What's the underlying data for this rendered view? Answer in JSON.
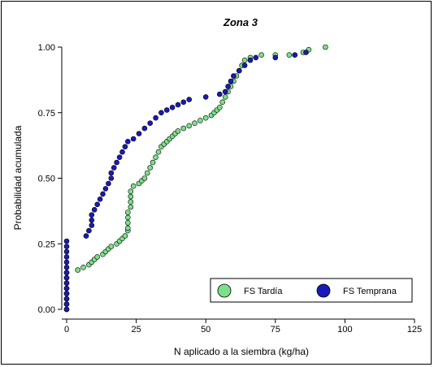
{
  "chart_data": {
    "type": "scatter",
    "title": "Zona 3",
    "xlabel": "N aplicado a la siembra (kg/ha)",
    "ylabel": "Probabilidad acumulada",
    "xlim": [
      0,
      125
    ],
    "ylim": [
      0,
      1
    ],
    "xticks": [
      "0",
      "25",
      "50",
      "75",
      "100",
      "125"
    ],
    "yticks": [
      "0.00",
      "0.25",
      "0.50",
      "0.75",
      "1.00"
    ],
    "legend_position": "bottom-right",
    "grid": false,
    "series": [
      {
        "name": "FS Tardía",
        "color": "#7ce08a",
        "points": [
          [
            0,
            0.0
          ],
          [
            0,
            0.02
          ],
          [
            0,
            0.04
          ],
          [
            0,
            0.06
          ],
          [
            0,
            0.08
          ],
          [
            0,
            0.1
          ],
          [
            0,
            0.12
          ],
          [
            0,
            0.14
          ],
          [
            4,
            0.15
          ],
          [
            6,
            0.16
          ],
          [
            8,
            0.17
          ],
          [
            9,
            0.18
          ],
          [
            10,
            0.19
          ],
          [
            11,
            0.2
          ],
          [
            13,
            0.21
          ],
          [
            14,
            0.22
          ],
          [
            15,
            0.23
          ],
          [
            16,
            0.24
          ],
          [
            18,
            0.25
          ],
          [
            19,
            0.26
          ],
          [
            20,
            0.27
          ],
          [
            21,
            0.28
          ],
          [
            22,
            0.3
          ],
          [
            22,
            0.31
          ],
          [
            22,
            0.33
          ],
          [
            22,
            0.35
          ],
          [
            22,
            0.37
          ],
          [
            23,
            0.39
          ],
          [
            23,
            0.41
          ],
          [
            23,
            0.43
          ],
          [
            23,
            0.45
          ],
          [
            24,
            0.47
          ],
          [
            26,
            0.48
          ],
          [
            27,
            0.49
          ],
          [
            28,
            0.5
          ],
          [
            29,
            0.52
          ],
          [
            30,
            0.54
          ],
          [
            31,
            0.56
          ],
          [
            32,
            0.58
          ],
          [
            33,
            0.6
          ],
          [
            34,
            0.62
          ],
          [
            35,
            0.63
          ],
          [
            36,
            0.64
          ],
          [
            37,
            0.65
          ],
          [
            38,
            0.66
          ],
          [
            39,
            0.67
          ],
          [
            40,
            0.68
          ],
          [
            42,
            0.69
          ],
          [
            44,
            0.7
          ],
          [
            46,
            0.71
          ],
          [
            48,
            0.72
          ],
          [
            50,
            0.73
          ],
          [
            52,
            0.74
          ],
          [
            53,
            0.75
          ],
          [
            54,
            0.76
          ],
          [
            55,
            0.77
          ],
          [
            56,
            0.79
          ],
          [
            57,
            0.81
          ],
          [
            58,
            0.83
          ],
          [
            59,
            0.85
          ],
          [
            60,
            0.87
          ],
          [
            61,
            0.89
          ],
          [
            62,
            0.91
          ],
          [
            63,
            0.93
          ],
          [
            64,
            0.95
          ],
          [
            66,
            0.96
          ],
          [
            70,
            0.97
          ],
          [
            75,
            0.97
          ],
          [
            80,
            0.97
          ],
          [
            85,
            0.98
          ],
          [
            87,
            0.99
          ],
          [
            93,
            1.0
          ]
        ]
      },
      {
        "name": "FS Temprana",
        "color": "#1a1ab8",
        "points": [
          [
            0,
            0.0
          ],
          [
            0,
            0.02
          ],
          [
            0,
            0.04
          ],
          [
            0,
            0.06
          ],
          [
            0,
            0.08
          ],
          [
            0,
            0.1
          ],
          [
            0,
            0.12
          ],
          [
            0,
            0.14
          ],
          [
            0,
            0.16
          ],
          [
            0,
            0.18
          ],
          [
            0,
            0.2
          ],
          [
            0,
            0.22
          ],
          [
            0,
            0.24
          ],
          [
            0,
            0.26
          ],
          [
            7,
            0.28
          ],
          [
            8,
            0.3
          ],
          [
            9,
            0.32
          ],
          [
            9,
            0.34
          ],
          [
            9,
            0.36
          ],
          [
            10,
            0.38
          ],
          [
            11,
            0.4
          ],
          [
            12,
            0.42
          ],
          [
            13,
            0.44
          ],
          [
            14,
            0.46
          ],
          [
            15,
            0.48
          ],
          [
            16,
            0.5
          ],
          [
            16,
            0.52
          ],
          [
            17,
            0.54
          ],
          [
            18,
            0.56
          ],
          [
            19,
            0.58
          ],
          [
            20,
            0.6
          ],
          [
            21,
            0.62
          ],
          [
            22,
            0.64
          ],
          [
            24,
            0.65
          ],
          [
            26,
            0.67
          ],
          [
            28,
            0.69
          ],
          [
            30,
            0.71
          ],
          [
            32,
            0.73
          ],
          [
            34,
            0.75
          ],
          [
            36,
            0.76
          ],
          [
            38,
            0.77
          ],
          [
            40,
            0.78
          ],
          [
            42,
            0.79
          ],
          [
            44,
            0.8
          ],
          [
            50,
            0.81
          ],
          [
            55,
            0.82
          ],
          [
            57,
            0.83
          ],
          [
            58,
            0.85
          ],
          [
            59,
            0.87
          ],
          [
            60,
            0.89
          ],
          [
            62,
            0.91
          ],
          [
            64,
            0.93
          ],
          [
            66,
            0.95
          ],
          [
            68,
            0.96
          ],
          [
            75,
            0.96
          ],
          [
            82,
            0.97
          ],
          [
            86,
            0.98
          ]
        ]
      }
    ]
  }
}
